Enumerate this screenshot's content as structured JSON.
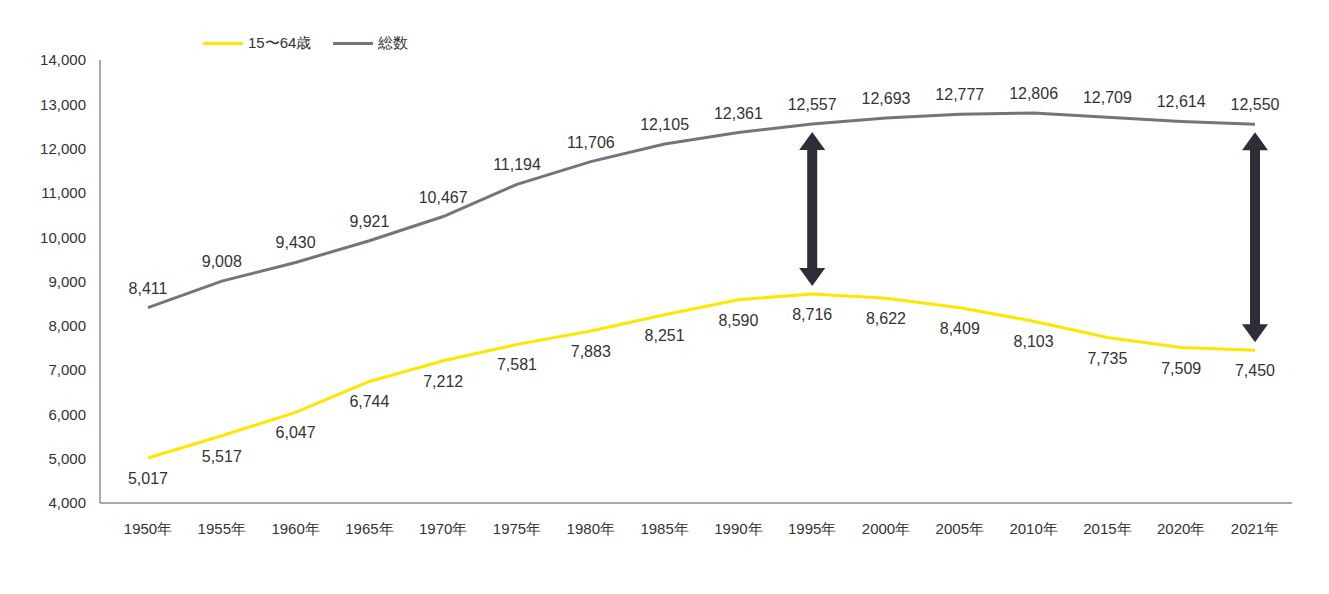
{
  "chart_data": {
    "type": "line",
    "categories": [
      "1950年",
      "1955年",
      "1960年",
      "1965年",
      "1970年",
      "1975年",
      "1980年",
      "1985年",
      "1990年",
      "1995年",
      "2000年",
      "2005年",
      "2010年",
      "2015年",
      "2020年",
      "2021年"
    ],
    "series": [
      {
        "name": "15〜64歳",
        "color": "#FFE600",
        "values": [
          5017,
          5517,
          6047,
          6744,
          7212,
          7581,
          7883,
          8251,
          8590,
          8716,
          8622,
          8409,
          8103,
          7735,
          7509,
          7450
        ],
        "value_labels": [
          "5,017",
          "5,517",
          "6,047",
          "6,744",
          "7,212",
          "7,581",
          "7,883",
          "8,251",
          "8,590",
          "8,716",
          "8,622",
          "8,409",
          "8,103",
          "7,735",
          "7,509",
          "7,450"
        ]
      },
      {
        "name": "総数",
        "color": "#747480",
        "values": [
          8411,
          9008,
          9430,
          9921,
          10467,
          11194,
          11706,
          12105,
          12361,
          12557,
          12693,
          12777,
          12806,
          12709,
          12614,
          12550
        ],
        "value_labels": [
          "8,411",
          "9,008",
          "9,430",
          "9,921",
          "10,467",
          "11,194",
          "11,706",
          "12,105",
          "12,361",
          "12,557",
          "12,693",
          "12,777",
          "12,806",
          "12,709",
          "12,614",
          "12,550"
        ]
      }
    ],
    "ylim": [
      4000,
      14000
    ],
    "yticks": [
      {
        "value": 4000,
        "label": "4,000"
      },
      {
        "value": 5000,
        "label": "5,000"
      },
      {
        "value": 6000,
        "label": "6,000"
      },
      {
        "value": 7000,
        "label": "7,000"
      },
      {
        "value": 8000,
        "label": "8,000"
      },
      {
        "value": 9000,
        "label": "9,000"
      },
      {
        "value": 10000,
        "label": "10,000"
      },
      {
        "value": 11000,
        "label": "11,000"
      },
      {
        "value": 12000,
        "label": "12,000"
      },
      {
        "value": 13000,
        "label": "13,000"
      },
      {
        "value": 14000,
        "label": "14,000"
      }
    ],
    "arrows": [
      "1995年",
      "2021年"
    ],
    "data_labels": true,
    "legend": "top-left",
    "grid": false
  }
}
